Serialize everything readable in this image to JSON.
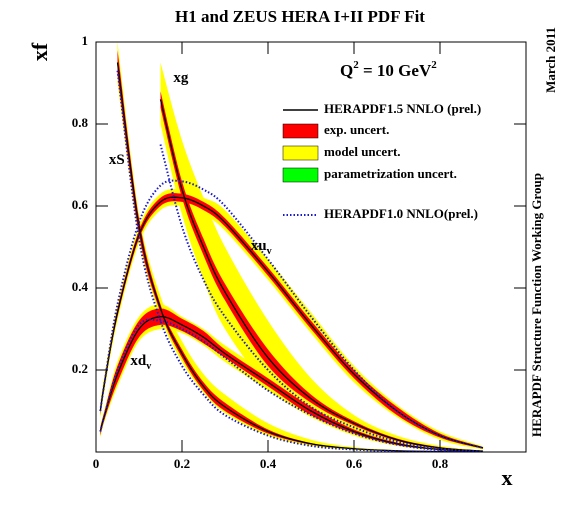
{
  "chart_data": {
    "type": "line",
    "title": "H1 and ZEUS HERA I+II PDF Fit",
    "xlabel": "x",
    "ylabel": "xf",
    "scale_label": [
      "Q",
      "2",
      " = 10 GeV",
      "2"
    ],
    "side_date": "March 2011",
    "side_group": "HERAPDF Structure Function Working Group",
    "xlim": [
      0,
      1
    ],
    "ylim": [
      0,
      1
    ],
    "xticks": [
      0,
      0.2,
      0.4,
      0.6,
      0.8
    ],
    "yticks": [
      0.2,
      0.4,
      0.6,
      0.8,
      1
    ],
    "legend": [
      {
        "name": "HERAPDF1.5 NNLO (prel.)",
        "color": "#000000"
      },
      {
        "name": "exp. uncert.",
        "color": "#ff0000"
      },
      {
        "name": "model uncert.",
        "color": "#ffff00"
      },
      {
        "name": "parametrization uncert.",
        "color": "#00ff00"
      },
      {
        "name": "HERAPDF1.0 NNLO(prel.)",
        "color": "#1a1acc"
      }
    ],
    "x": [
      0.01,
      0.02,
      0.05,
      0.1,
      0.15,
      0.2,
      0.25,
      0.3,
      0.4,
      0.5,
      0.6,
      0.7,
      0.8,
      0.9
    ],
    "series": [
      {
        "name": "xu",
        "sub": "v",
        "label_at": [
          0.36,
          0.5
        ],
        "values": [
          0.1,
          0.17,
          0.34,
          0.53,
          0.61,
          0.62,
          0.6,
          0.56,
          0.44,
          0.31,
          0.19,
          0.1,
          0.04,
          0.01
        ],
        "exp_low": [
          0.09,
          0.16,
          0.33,
          0.52,
          0.6,
          0.61,
          0.59,
          0.55,
          0.43,
          0.3,
          0.18,
          0.09,
          0.035,
          0.008
        ],
        "exp_high": [
          0.11,
          0.18,
          0.35,
          0.54,
          0.62,
          0.63,
          0.61,
          0.57,
          0.45,
          0.32,
          0.2,
          0.11,
          0.045,
          0.012
        ],
        "model_low": [
          0.08,
          0.15,
          0.32,
          0.51,
          0.59,
          0.6,
          0.58,
          0.54,
          0.42,
          0.29,
          0.17,
          0.085,
          0.03,
          0.006
        ],
        "model_high": [
          0.12,
          0.19,
          0.36,
          0.55,
          0.63,
          0.64,
          0.62,
          0.59,
          0.47,
          0.34,
          0.21,
          0.115,
          0.05,
          0.014
        ],
        "v10": [
          0.1,
          0.17,
          0.36,
          0.56,
          0.65,
          0.66,
          0.64,
          0.6,
          0.47,
          0.33,
          0.2,
          0.1,
          0.04,
          0.01
        ]
      },
      {
        "name": "xd",
        "sub": "v",
        "label_at": [
          0.08,
          0.22
        ],
        "values": [
          0.05,
          0.09,
          0.19,
          0.3,
          0.33,
          0.31,
          0.28,
          0.24,
          0.17,
          0.1,
          0.05,
          0.02,
          0.006,
          0.001
        ],
        "exp_low": [
          0.04,
          0.08,
          0.17,
          0.28,
          0.31,
          0.295,
          0.265,
          0.23,
          0.16,
          0.09,
          0.045,
          0.017,
          0.005,
          0.001
        ],
        "exp_high": [
          0.06,
          0.1,
          0.21,
          0.32,
          0.35,
          0.325,
          0.295,
          0.25,
          0.18,
          0.11,
          0.055,
          0.023,
          0.007,
          0.001
        ],
        "model_low": [
          0.035,
          0.075,
          0.16,
          0.27,
          0.3,
          0.29,
          0.26,
          0.22,
          0.15,
          0.085,
          0.04,
          0.015,
          0.004,
          0.001
        ],
        "model_high": [
          0.065,
          0.105,
          0.22,
          0.33,
          0.36,
          0.33,
          0.3,
          0.26,
          0.19,
          0.115,
          0.06,
          0.025,
          0.008,
          0.002
        ],
        "v10": [
          0.05,
          0.09,
          0.2,
          0.31,
          0.32,
          0.3,
          0.27,
          0.23,
          0.15,
          0.09,
          0.045,
          0.018,
          0.005,
          0.001
        ]
      },
      {
        "name": "xS",
        "label_at": [
          0.03,
          0.71
        ],
        "values": [
          null,
          null,
          0.95,
          0.55,
          0.35,
          0.24,
          0.16,
          0.11,
          0.05,
          0.02,
          0.008,
          0.003,
          0.001,
          0
        ],
        "exp_low": [
          null,
          null,
          0.92,
          0.53,
          0.34,
          0.23,
          0.15,
          0.1,
          0.045,
          0.018,
          0.007,
          0.002,
          0.001,
          0
        ],
        "exp_high": [
          null,
          null,
          0.98,
          0.57,
          0.36,
          0.25,
          0.17,
          0.12,
          0.055,
          0.022,
          0.009,
          0.004,
          0.002,
          0
        ],
        "model_low": [
          null,
          null,
          0.9,
          0.52,
          0.33,
          0.22,
          0.145,
          0.095,
          0.04,
          0.015,
          0.005,
          0.002,
          0,
          0
        ],
        "model_high": [
          null,
          null,
          1.0,
          0.58,
          0.38,
          0.27,
          0.19,
          0.14,
          0.07,
          0.03,
          0.012,
          0.005,
          0.002,
          0.001
        ],
        "v10": [
          null,
          null,
          0.93,
          0.52,
          0.32,
          0.21,
          0.14,
          0.09,
          0.04,
          0.015,
          0.006,
          0.002,
          0.001,
          0
        ]
      },
      {
        "name": "xg",
        "label_at": [
          0.18,
          0.91
        ],
        "values": [
          null,
          null,
          null,
          null,
          0.86,
          0.64,
          0.5,
          0.39,
          0.23,
          0.13,
          0.07,
          0.03,
          0.01,
          0.002
        ],
        "exp_low": [
          null,
          null,
          null,
          null,
          0.84,
          0.62,
          0.48,
          0.37,
          0.21,
          0.12,
          0.065,
          0.027,
          0.008,
          0.001
        ],
        "exp_high": [
          null,
          null,
          null,
          null,
          0.88,
          0.66,
          0.52,
          0.41,
          0.25,
          0.14,
          0.075,
          0.033,
          0.012,
          0.003
        ],
        "model_low": [
          null,
          null,
          null,
          null,
          0.8,
          0.58,
          0.42,
          0.3,
          0.16,
          0.09,
          0.05,
          0.02,
          0.006,
          0.001
        ],
        "model_high": [
          null,
          null,
          null,
          null,
          0.95,
          0.76,
          0.62,
          0.5,
          0.32,
          0.18,
          0.09,
          0.04,
          0.015,
          0.004
        ],
        "v10": [
          null,
          null,
          null,
          null,
          0.75,
          0.55,
          0.42,
          0.33,
          0.2,
          0.11,
          0.06,
          0.025,
          0.008,
          0.001
        ]
      }
    ]
  }
}
